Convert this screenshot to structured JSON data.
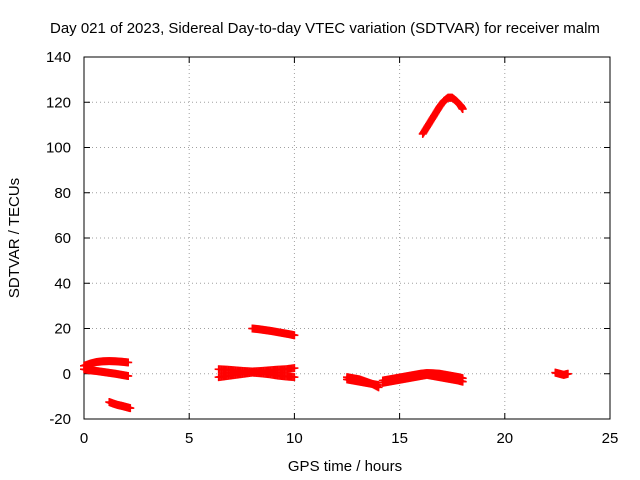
{
  "chart_data": {
    "type": "scatter",
    "title": "Day 021 of 2023, Sidereal Day-to-day VTEC variation (SDTVAR) for receiver malm",
    "xlabel": "GPS time / hours",
    "ylabel": "SDTVAR / TECUs",
    "xlim": [
      0,
      25
    ],
    "ylim": [
      -20,
      140
    ],
    "xticks": [
      0,
      5,
      10,
      15,
      20,
      25
    ],
    "yticks": [
      -20,
      0,
      20,
      40,
      60,
      80,
      100,
      120,
      140
    ],
    "grid": true,
    "marker": "+",
    "series": [
      {
        "name": "SDTVAR",
        "color": "#ff0000",
        "segments": [
          {
            "x": [
              0.0,
              0.3,
              0.6,
              0.9,
              1.2,
              1.5,
              1.8,
              2.1
            ],
            "y": [
              3.5,
              4.5,
              5.2,
              5.5,
              5.6,
              5.5,
              5.3,
              5.0
            ]
          },
          {
            "x": [
              0.0,
              0.3,
              0.6,
              0.9,
              1.2,
              1.5,
              1.8,
              2.1
            ],
            "y": [
              2.0,
              1.5,
              1.2,
              0.8,
              0.4,
              0.0,
              -0.5,
              -1.0
            ]
          },
          {
            "x": [
              1.2,
              1.4,
              1.6,
              1.8,
              2.0,
              2.2
            ],
            "y": [
              -12.5,
              -13.2,
              -13.8,
              -14.2,
              -14.7,
              -15.2
            ]
          },
          {
            "x": [
              6.4,
              6.8,
              7.2,
              7.6,
              8.0,
              8.4,
              8.8,
              9.2,
              9.6,
              10.0
            ],
            "y": [
              2.0,
              1.8,
              1.5,
              1.2,
              1.0,
              1.2,
              1.5,
              1.8,
              2.0,
              2.5
            ]
          },
          {
            "x": [
              6.4,
              6.8,
              7.2,
              7.6,
              8.0,
              8.4,
              8.8,
              9.2,
              9.6,
              10.0
            ],
            "y": [
              -1.5,
              -1.0,
              -0.5,
              0.0,
              0.5,
              0.2,
              -0.2,
              -0.8,
              -1.2,
              -1.5
            ]
          },
          {
            "x": [
              8.0,
              8.3,
              8.6,
              8.9,
              9.2,
              9.5,
              9.8,
              10.0
            ],
            "y": [
              20.0,
              19.7,
              19.3,
              18.9,
              18.4,
              17.9,
              17.4,
              17.0
            ]
          },
          {
            "x": [
              12.5,
              12.8,
              13.1,
              13.4,
              13.7,
              14.0
            ],
            "y": [
              -1.5,
              -2.0,
              -2.5,
              -3.5,
              -4.5,
              -6.0
            ]
          },
          {
            "x": [
              12.5,
              12.8,
              13.1,
              13.4,
              13.7,
              14.0
            ],
            "y": [
              -2.5,
              -3.0,
              -3.5,
              -4.0,
              -4.5,
              -5.0
            ]
          },
          {
            "x": [
              14.2,
              14.5,
              14.8,
              15.1,
              15.4,
              15.7,
              16.0,
              16.3,
              16.6,
              16.9,
              17.2,
              17.5,
              17.8,
              18.0
            ],
            "y": [
              -3.0,
              -2.5,
              -2.0,
              -1.5,
              -1.0,
              -0.5,
              0.0,
              0.3,
              0.2,
              0.0,
              -0.5,
              -1.0,
              -1.5,
              -2.0
            ]
          },
          {
            "x": [
              14.2,
              14.5,
              14.8,
              15.1,
              15.4,
              15.7,
              16.0,
              16.3,
              16.6,
              16.9,
              17.2,
              17.5,
              17.8,
              18.0
            ],
            "y": [
              -4.0,
              -3.5,
              -3.0,
              -2.5,
              -2.0,
              -1.5,
              -1.0,
              -0.5,
              -1.0,
              -1.5,
              -2.0,
              -2.5,
              -3.0,
              -3.5
            ]
          },
          {
            "x": [
              16.1,
              16.3,
              16.5,
              16.7,
              16.9,
              17.1,
              17.3,
              17.5,
              17.7,
              17.9,
              18.0
            ],
            "y": [
              106.0,
              109.0,
              112.0,
              115.0,
              118.0,
              120.5,
              122.0,
              122.0,
              120.5,
              118.5,
              117.0
            ]
          },
          {
            "x": [
              22.4,
              22.6,
              22.8,
              23.0
            ],
            "y": [
              0.5,
              0.0,
              -0.5,
              0.0
            ]
          }
        ]
      }
    ]
  }
}
